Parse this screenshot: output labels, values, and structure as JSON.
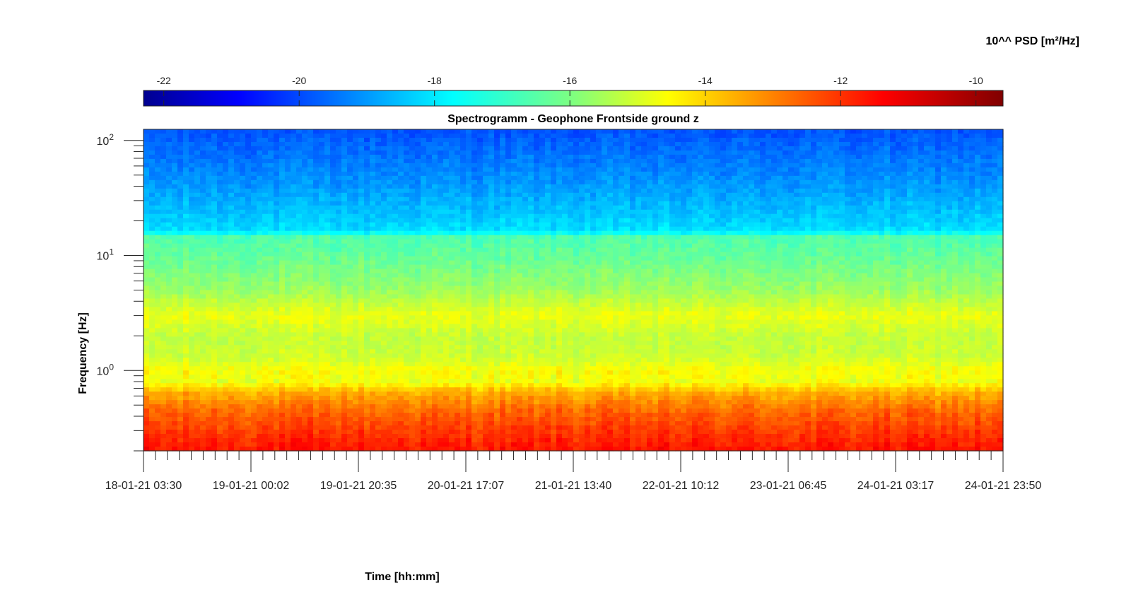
{
  "chart_data": {
    "type": "heatmap",
    "title": "Spectrogramm - Geophone Frontside ground z",
    "xlabel": "Time [hh:mm]",
    "ylabel": "Frequency [Hz]",
    "colorbar_label": "10^^ PSD [m²/Hz]",
    "colormap": "jet",
    "y_scale": "log",
    "ylim": [
      0.2,
      125
    ],
    "clim": [
      -22.3,
      -9.6
    ],
    "colorbar_ticks": [
      -22,
      -20,
      -18,
      -16,
      -14,
      -12,
      -10
    ],
    "colorbar_placement": "top",
    "x_ticks": [
      "18-01-21 03:30",
      "19-01-21 00:02",
      "19-01-21 20:35",
      "20-01-21 17:07",
      "21-01-21 13:40",
      "22-01-21 10:12",
      "23-01-21 06:45",
      "24-01-21 03:17",
      "24-01-21 23:50"
    ],
    "y_ticks": [
      {
        "base": "10",
        "exp": "0",
        "value": 1
      },
      {
        "base": "10",
        "exp": "1",
        "value": 10
      },
      {
        "base": "10",
        "exp": "2",
        "value": 100
      }
    ],
    "frequency_profile": [
      {
        "f": 0.2,
        "psd": -11.4
      },
      {
        "f": 0.3,
        "psd": -11.9
      },
      {
        "f": 0.45,
        "psd": -12.5
      },
      {
        "f": 0.65,
        "psd": -13.4
      },
      {
        "f": 0.8,
        "psd": -14.6
      },
      {
        "f": 1.0,
        "psd": -14.4
      },
      {
        "f": 1.3,
        "psd": -15.0
      },
      {
        "f": 2.0,
        "psd": -15.1
      },
      {
        "f": 3.0,
        "psd": -14.6
      },
      {
        "f": 5.0,
        "psd": -15.6
      },
      {
        "f": 10.0,
        "psd": -16.3
      },
      {
        "f": 15.0,
        "psd": -16.6
      },
      {
        "f": 16.0,
        "psd": -17.9
      },
      {
        "f": 40.0,
        "psd": -18.8
      },
      {
        "f": 125.0,
        "psd": -19.7
      }
    ]
  }
}
